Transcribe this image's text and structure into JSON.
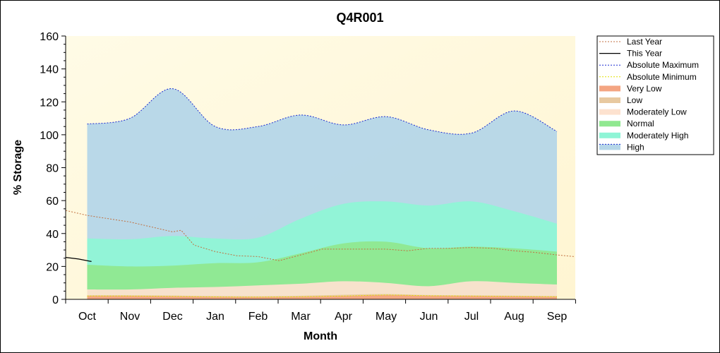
{
  "chart_data": {
    "type": "area",
    "title": "Q4R001",
    "xlabel": "Month",
    "ylabel": "% Storage",
    "categories": [
      "Oct",
      "Nov",
      "Dec",
      "Jan",
      "Feb",
      "Mar",
      "Apr",
      "May",
      "Jun",
      "Jul",
      "Aug",
      "Sep"
    ],
    "ylim": [
      0,
      160
    ],
    "yticks": [
      0,
      20,
      40,
      60,
      80,
      100,
      120,
      140,
      160
    ],
    "grid": false,
    "legend_position": "right",
    "bands": [
      {
        "name": "Very Low",
        "color": "#f4a582",
        "x": [
          0,
          1,
          2,
          3,
          4,
          5,
          6,
          7,
          8,
          9,
          10,
          11
        ],
        "y": [
          2,
          2,
          1.8,
          1.5,
          1.4,
          1.6,
          2,
          2.6,
          2.2,
          2,
          1.8,
          1.6
        ]
      },
      {
        "name": "Low",
        "color": "#e8c9a0",
        "x": [
          0,
          1,
          2,
          3,
          4,
          5,
          6,
          7,
          8,
          9,
          10,
          11
        ],
        "y": [
          2.5,
          2.5,
          2.3,
          2,
          1.9,
          2.2,
          2.8,
          3.2,
          2.6,
          2.4,
          2.2,
          2
        ]
      },
      {
        "name": "Moderately Low",
        "color": "#fde2cf",
        "x": [
          0,
          1,
          2,
          3,
          4,
          5,
          6,
          7,
          8,
          9,
          10,
          11
        ],
        "y": [
          6,
          6,
          7,
          7.5,
          8.5,
          9.5,
          11,
          10,
          8,
          11,
          10,
          9
        ]
      },
      {
        "name": "Normal",
        "color": "#90e890",
        "x": [
          0,
          1,
          2,
          3,
          4,
          5,
          6,
          7,
          8,
          9,
          10,
          11
        ],
        "y": [
          21,
          20,
          20.5,
          22,
          22.5,
          28,
          34,
          35,
          31,
          32,
          31,
          29
        ]
      },
      {
        "name": "Moderately High",
        "color": "#8ff5d6",
        "x": [
          0,
          1,
          2,
          3,
          4,
          5,
          6,
          7,
          8,
          9,
          10,
          11
        ],
        "y": [
          37,
          36.5,
          38.5,
          37,
          37.5,
          49,
          58,
          59.5,
          57,
          59.5,
          53.5,
          46
        ]
      },
      {
        "name": "High",
        "color": "#b5d6e8",
        "x": [
          0,
          1,
          2,
          3,
          4,
          5,
          6,
          7,
          8,
          9,
          10,
          11
        ],
        "y": [
          106.5,
          110,
          128,
          105,
          105,
          112,
          106,
          111,
          103,
          101,
          114.5,
          102
        ]
      }
    ],
    "series": [
      {
        "name": "Last Year",
        "color": "#c07040",
        "style": "dotted",
        "x": [
          -0.5,
          0,
          0.5,
          1,
          1.5,
          2,
          2.2,
          2.5,
          3,
          3.5,
          4,
          4.5,
          5,
          5.5,
          6,
          6.5,
          7,
          7.5,
          8,
          8.5,
          9,
          9.5,
          10,
          10.5,
          11,
          11.4
        ],
        "y": [
          54,
          51,
          49,
          47,
          44,
          41,
          42,
          33,
          29,
          26.5,
          26,
          23.5,
          27,
          30.5,
          30.5,
          30.5,
          30.5,
          29.5,
          31,
          31,
          31.5,
          31,
          29.5,
          28.5,
          27,
          26
        ]
      },
      {
        "name": "This Year",
        "color": "#000000",
        "style": "solid",
        "x": [
          -0.5,
          -0.2,
          0.1
        ],
        "y": [
          25.5,
          24.5,
          23
        ]
      },
      {
        "name": "Absolute Maximum",
        "color": "#1a2ad0",
        "style": "dotted",
        "x": [
          0,
          1,
          2,
          3,
          4,
          5,
          6,
          7,
          8,
          9,
          10,
          11
        ],
        "y": [
          106.5,
          110,
          128,
          105,
          105,
          112,
          106,
          111,
          103,
          101,
          114.5,
          102
        ]
      },
      {
        "name": "Absolute Minimum",
        "color": "#e0e000",
        "style": "dotted",
        "x": [
          0,
          1,
          2,
          3,
          4,
          5,
          6,
          7,
          8,
          9,
          10,
          11
        ],
        "y": [
          2,
          2,
          1.8,
          1.5,
          1.4,
          1.6,
          2,
          2.6,
          2.2,
          2,
          1.8,
          1.6
        ]
      }
    ],
    "legend": [
      {
        "name": "Last Year",
        "kind": "line",
        "color": "#c07040",
        "style": "dotted"
      },
      {
        "name": "This Year",
        "kind": "line",
        "color": "#000000",
        "style": "solid"
      },
      {
        "name": "Absolute Maximum",
        "kind": "line",
        "color": "#1a2ad0",
        "style": "dotted"
      },
      {
        "name": "Absolute Minimum",
        "kind": "line",
        "color": "#e0e000",
        "style": "dotted"
      },
      {
        "name": "Very Low",
        "kind": "band",
        "color": "#f4a582"
      },
      {
        "name": "Low",
        "kind": "band",
        "color": "#e8c9a0"
      },
      {
        "name": "Moderately Low",
        "kind": "band",
        "color": "#fde2cf"
      },
      {
        "name": "Normal",
        "kind": "band",
        "color": "#90e890"
      },
      {
        "name": "Moderately High",
        "kind": "band",
        "color": "#8ff5d6"
      },
      {
        "name": "High",
        "kind": "band",
        "color": "#b5d6e8",
        "edge": "#1a2ad0"
      }
    ]
  }
}
